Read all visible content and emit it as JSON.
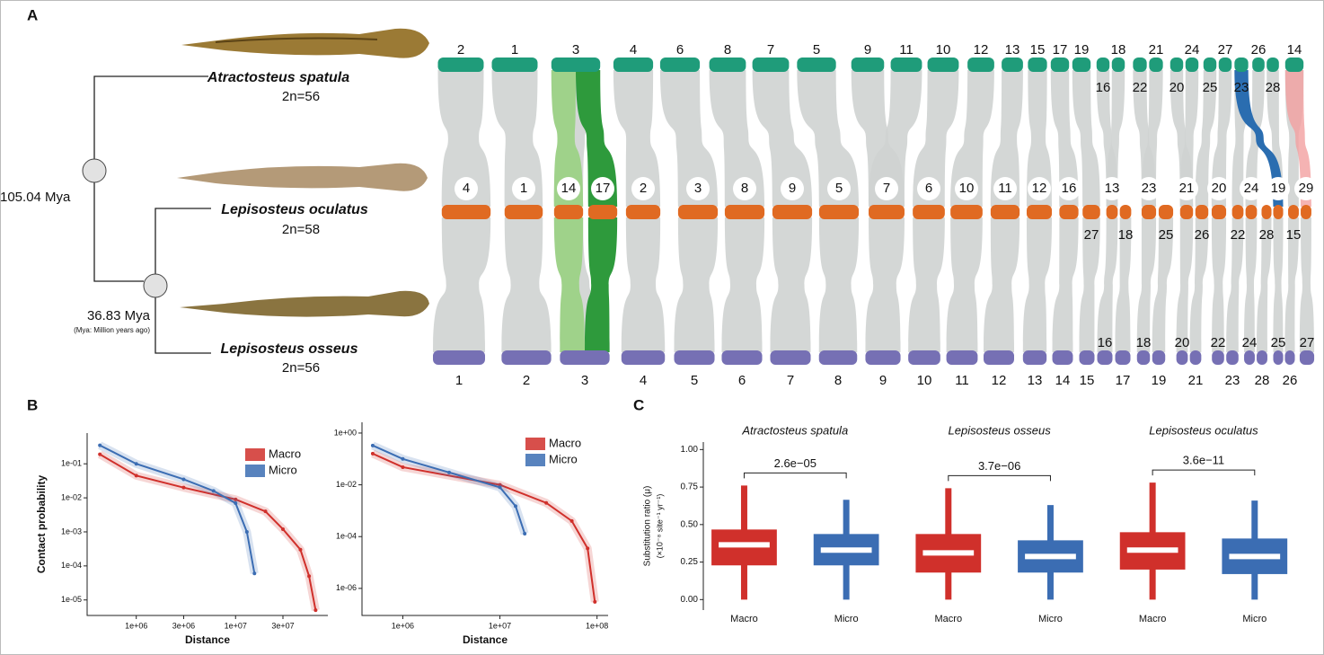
{
  "panel_labels": [
    "A",
    "B",
    "C"
  ],
  "tree": {
    "species": [
      {
        "name": "Atractosteus spatula",
        "karyotype": "2n=56"
      },
      {
        "name": "Lepisosteus oculatus",
        "karyotype": "2n=58"
      },
      {
        "name": "Lepisosteus osseus",
        "karyotype": "2n=56"
      }
    ],
    "nodes": [
      {
        "age": "105.04 Mya"
      },
      {
        "age": "36.83 Mya",
        "note": "(Mya: Million years ago)"
      }
    ]
  },
  "synteny": {
    "rows": [
      {
        "color": "#1f9c7a",
        "above": [
          2,
          1,
          3,
          4,
          6,
          8,
          7,
          5,
          9,
          11,
          10,
          12,
          13,
          15,
          17,
          19,
          18,
          21,
          24,
          27,
          26,
          14
        ],
        "below": [
          16,
          22,
          20,
          25,
          23,
          28
        ]
      },
      {
        "color": "#e06a22",
        "above": [
          4,
          1,
          14,
          17,
          2,
          3,
          8,
          9,
          5,
          7,
          6,
          10,
          11,
          12,
          16,
          13,
          23,
          21,
          20,
          24,
          19,
          29
        ],
        "below": [
          27,
          18,
          25,
          26,
          22,
          28,
          15
        ]
      },
      {
        "color": "#7670b4",
        "above": [
          16,
          18,
          20,
          22,
          24,
          25,
          27
        ],
        "below": [
          1,
          2,
          3,
          4,
          5,
          6,
          7,
          8,
          9,
          10,
          11,
          12,
          13,
          14,
          15,
          17,
          19,
          21,
          23,
          28,
          26
        ]
      }
    ]
  },
  "chart_data": [
    {
      "type": "line",
      "xscale": "log",
      "yscale": "log",
      "xlabel": "Distance",
      "ylabel": "Contact probability",
      "legend": "upper right",
      "xlim": [
        320000,
        85000000
      ],
      "ylim": [
        3.5e-06,
        0.8
      ],
      "xticks": [
        {
          "value": 1000000,
          "label": "1e+06"
        },
        {
          "value": 3000000,
          "label": "3e+06"
        },
        {
          "value": 10000000,
          "label": "1e+07"
        },
        {
          "value": 30000000,
          "label": "3e+07"
        }
      ],
      "yticks": [
        {
          "value": 0.1,
          "label": "1e-01"
        },
        {
          "value": 0.01,
          "label": "1e-02"
        },
        {
          "value": 0.001,
          "label": "1e-03"
        },
        {
          "value": 0.0001,
          "label": "1e-04"
        },
        {
          "value": 1e-05,
          "label": "1e-05"
        }
      ],
      "series": [
        {
          "name": "Macro",
          "color": "#d0302b",
          "x": [
            430000,
            1000000,
            3000000,
            10000000,
            20000000,
            30000000,
            45000000,
            55000000,
            64000000
          ],
          "values": [
            0.19,
            0.045,
            0.02,
            0.009,
            0.004,
            0.0012,
            0.0003,
            5e-05,
            5e-06
          ]
        },
        {
          "name": "Micro",
          "color": "#3b6db3",
          "x": [
            430000,
            1000000,
            3000000,
            6000000,
            10000000,
            13000000,
            15500000
          ],
          "values": [
            0.35,
            0.1,
            0.035,
            0.016,
            0.007,
            0.001,
            6e-05
          ]
        }
      ]
    },
    {
      "type": "line",
      "xscale": "log",
      "yscale": "log",
      "xlabel": "Distance",
      "legend": "upper right",
      "xlim": [
        380000,
        130000000
      ],
      "ylim": [
        9e-08,
        2.6
      ],
      "xticks": [
        {
          "value": 1000000,
          "label": "1e+06"
        },
        {
          "value": 10000000,
          "label": "1e+07"
        },
        {
          "value": 100000000,
          "label": "1e+08"
        }
      ],
      "yticks": [
        {
          "value": 1,
          "label": "1e+00"
        },
        {
          "value": 0.01,
          "label": "1e-02"
        },
        {
          "value": 0.0001,
          "label": "1e-04"
        },
        {
          "value": 1e-06,
          "label": "1e-06"
        }
      ],
      "series": [
        {
          "name": "Macro",
          "color": "#d0302b",
          "x": [
            490000,
            1000000,
            10000000,
            30000000,
            55000000,
            80000000,
            95000000
          ],
          "values": [
            0.16,
            0.048,
            0.01,
            0.002,
            0.0004,
            3.5e-05,
            3e-07
          ]
        },
        {
          "name": "Micro",
          "color": "#3b6db3",
          "x": [
            490000,
            1000000,
            3000000,
            10000000,
            14500000,
            18000000
          ],
          "values": [
            0.33,
            0.1,
            0.03,
            0.008,
            0.0015,
            0.00013
          ]
        }
      ]
    },
    {
      "type": "box",
      "ylabel": "Substitution ratio (μ)",
      "ylabel2": "(×10⁻⁸ site⁻¹ yr⁻¹)",
      "ylim": [
        -0.07,
        1.05
      ],
      "yticks": [
        {
          "value": 0,
          "label": "0.00"
        },
        {
          "value": 0.25,
          "label": "0.25"
        },
        {
          "value": 0.5,
          "label": "0.50"
        },
        {
          "value": 0.75,
          "label": "0.75"
        },
        {
          "value": 1,
          "label": "1.00"
        }
      ],
      "colors": [
        "#d0302b",
        "#3b6db3"
      ],
      "facets": [
        {
          "title": "Atractosteus spatula",
          "annotation": "2.6e−05",
          "categories": [
            "Macro",
            "Micro"
          ],
          "min": [
            0,
            0
          ],
          "q1": [
            0.228,
            0.228
          ],
          "median": [
            0.365,
            0.33
          ],
          "q3": [
            0.467,
            0.437
          ],
          "max": [
            0.76,
            0.665
          ]
        },
        {
          "title": "Lepisosteus osseus",
          "annotation": "3.7e−06",
          "categories": [
            "Macro",
            "Micro"
          ],
          "min": [
            0,
            0
          ],
          "q1": [
            0.18,
            0.18
          ],
          "median": [
            0.311,
            0.287
          ],
          "q3": [
            0.437,
            0.395
          ],
          "max": [
            0.742,
            0.63
          ]
        },
        {
          "title": "Lepisosteus oculatus",
          "annotation": "3.6e−11",
          "categories": [
            "Macro",
            "Micro"
          ],
          "min": [
            0,
            0
          ],
          "q1": [
            0.2,
            0.17
          ],
          "median": [
            0.33,
            0.287
          ],
          "q3": [
            0.449,
            0.407
          ],
          "max": [
            0.78,
            0.66
          ]
        }
      ]
    }
  ]
}
